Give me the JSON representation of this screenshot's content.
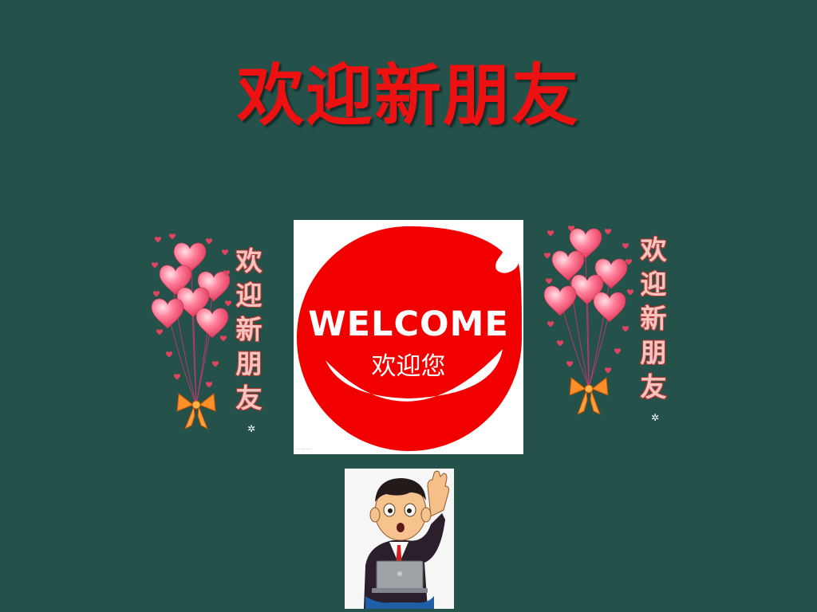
{
  "slide": {
    "title": "欢迎新朋友",
    "title_color": "#ee1111",
    "background_color": "#24524b"
  },
  "left_sticker": {
    "chars": [
      "欢",
      "迎",
      "新",
      "朋",
      "友"
    ],
    "icons": [
      "heart-balloon-icon",
      "bow-icon"
    ]
  },
  "welcome_logo": {
    "word": "WELCOME",
    "subtitle": "欢迎您",
    "brand_color": "#f20000"
  },
  "right_sticker": {
    "chars": [
      "欢",
      "迎",
      "新",
      "朋",
      "友"
    ],
    "icons": [
      "heart-balloon-icon",
      "bow-icon"
    ]
  },
  "person_illustration": {
    "icon": "waving-man-with-laptop-icon"
  }
}
